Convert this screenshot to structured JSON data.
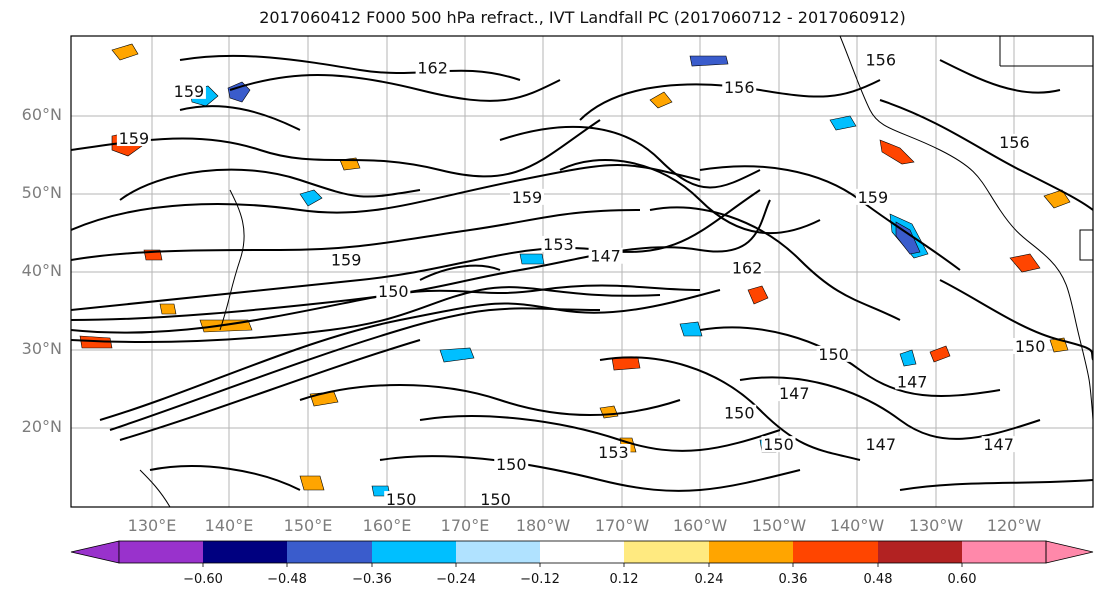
{
  "title": "2017060412 F000 500 hPa refract., IVT Landfall PC (2017060712 - 2017060912)",
  "lat_labels": [
    "60°N",
    "50°N",
    "40°N",
    "30°N",
    "20°N"
  ],
  "lon_labels": [
    "130°E",
    "140°E",
    "150°E",
    "160°E",
    "170°E",
    "180°W",
    "170°W",
    "160°W",
    "150°W",
    "140°W",
    "130°W",
    "120°W"
  ],
  "colorbar": {
    "ticks": [
      "−0.60",
      "−0.48",
      "−0.36",
      "−0.24",
      "−0.12",
      "0.12",
      "0.24",
      "0.36",
      "0.48",
      "0.60"
    ],
    "colors": [
      "#9932cc",
      "#000080",
      "#3a5ccc",
      "#00bfff",
      "#b0e2ff",
      "#ffffff",
      "#ffea80",
      "#ffa500",
      "#ff4500",
      "#b22222",
      "#ff88aa"
    ]
  },
  "contour_labels": [
    {
      "text": "162",
      "lon": 166,
      "lat": 65.5
    },
    {
      "text": "159",
      "lon": 135,
      "lat": 62.5
    },
    {
      "text": "159",
      "lon": 128,
      "lat": 56.5
    },
    {
      "text": "156",
      "lon": -155,
      "lat": 63
    },
    {
      "text": "156",
      "lon": -137,
      "lat": 66.5
    },
    {
      "text": "156",
      "lon": -120,
      "lat": 56
    },
    {
      "text": "159",
      "lon": 178,
      "lat": 49
    },
    {
      "text": "159",
      "lon": -138,
      "lat": 49
    },
    {
      "text": "153",
      "lon": 182,
      "lat": 43
    },
    {
      "text": "147",
      "lon": 188,
      "lat": 41.5
    },
    {
      "text": "162",
      "lon": -154,
      "lat": 40
    },
    {
      "text": "159",
      "lon": 155,
      "lat": 41
    },
    {
      "text": "150",
      "lon": 161,
      "lat": 37
    },
    {
      "text": "150",
      "lon": -143,
      "lat": 29
    },
    {
      "text": "147",
      "lon": -133,
      "lat": 25.5
    },
    {
      "text": "147",
      "lon": -148,
      "lat": 24
    },
    {
      "text": "150",
      "lon": -155,
      "lat": 21.5
    },
    {
      "text": "150",
      "lon": -150,
      "lat": 17.5
    },
    {
      "text": "147",
      "lon": -137,
      "lat": 17.5
    },
    {
      "text": "147",
      "lon": -122,
      "lat": 17.5
    },
    {
      "text": "153",
      "lon": 189,
      "lat": 16.5
    },
    {
      "text": "150",
      "lon": 176,
      "lat": 15
    },
    {
      "text": "150",
      "lon": 162,
      "lat": 10.5
    },
    {
      "text": "150",
      "lon": 174,
      "lat": 10.5
    },
    {
      "text": "150",
      "lon": -118,
      "lat": 30
    }
  ]
}
